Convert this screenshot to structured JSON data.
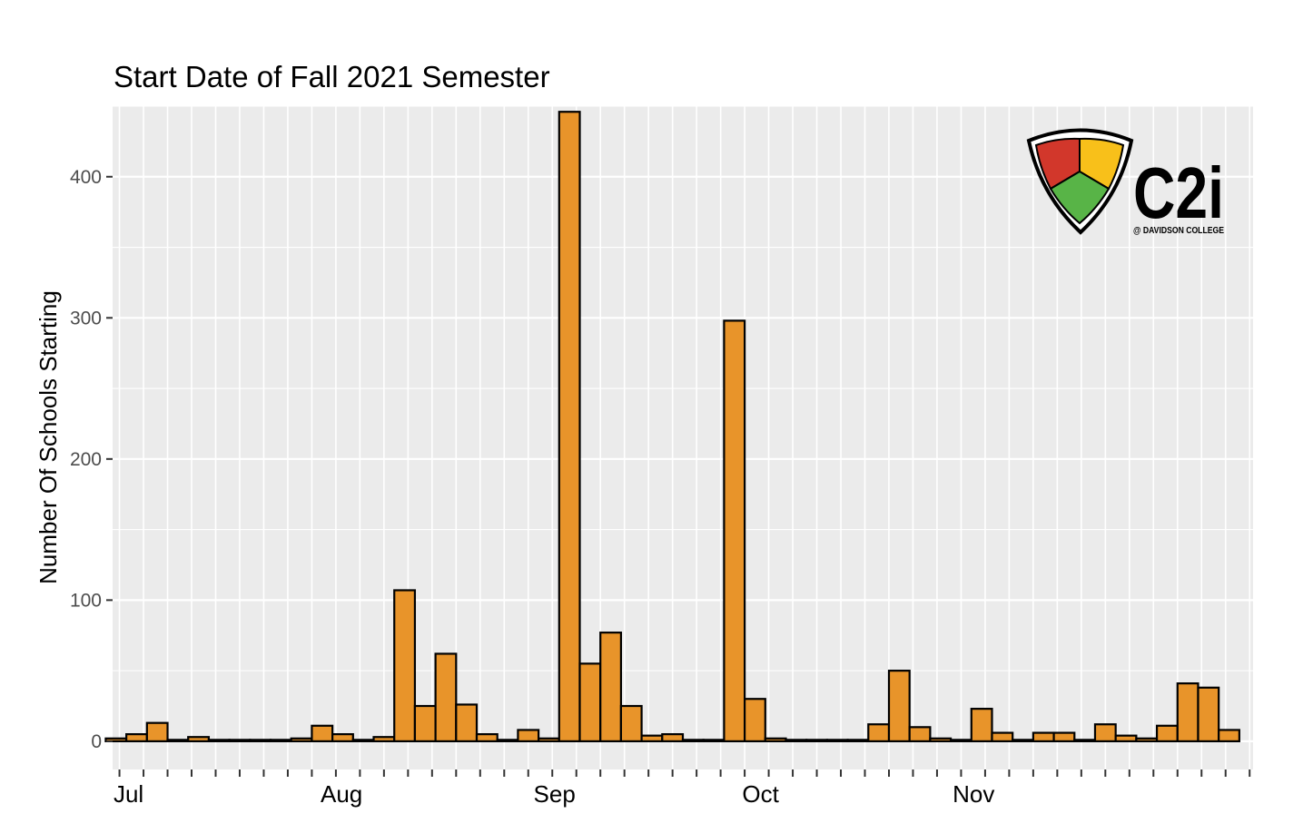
{
  "chart_data": {
    "type": "bar",
    "title": "Start Date of Fall 2021 Semester",
    "xlabel": "",
    "ylabel": "Number Of Schools Starting",
    "ylim": [
      -20,
      450
    ],
    "y_ticks": [
      0,
      100,
      200,
      300,
      400
    ],
    "x_tick_labels": [
      "Jul",
      "Aug",
      "Sep",
      "Oct",
      "Nov"
    ],
    "bin_days": 3,
    "x_start": "2021-06-30",
    "values": [
      2,
      5,
      13,
      1,
      3,
      1,
      1,
      1,
      1,
      2,
      11,
      5,
      1,
      3,
      107,
      25,
      62,
      26,
      5,
      1,
      8,
      2,
      446,
      55,
      77,
      25,
      4,
      5,
      1,
      1,
      298,
      30,
      2,
      1,
      1,
      1,
      1,
      12,
      50,
      10,
      2,
      1,
      23,
      6,
      1,
      6,
      6,
      1,
      12,
      4,
      2,
      11,
      41,
      38,
      8
    ],
    "bar_color": "#E8942A",
    "bar_outline": "#000000",
    "panel_background": "#EBEBEB",
    "grid": true
  },
  "logo": {
    "text": "C2i",
    "subtext": "@ DAVIDSON COLLEGE",
    "colors": {
      "red": "#D2372B",
      "yellow": "#F8C01A",
      "green": "#58B447"
    }
  }
}
